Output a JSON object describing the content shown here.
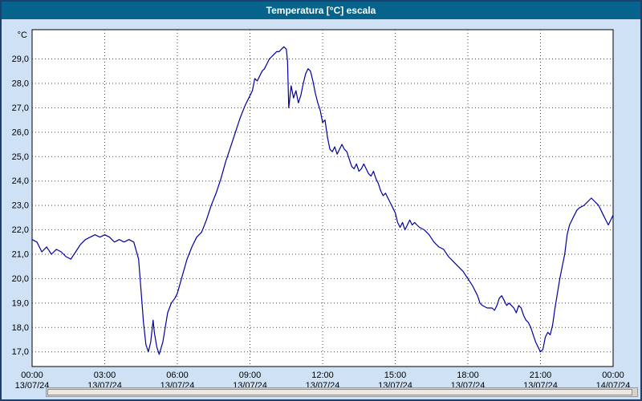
{
  "window": {
    "title": "Temperatura [°C] escala"
  },
  "colors": {
    "background": "#cfe2f5",
    "titlebar": "#06648c",
    "titlebar_text": "#ffffff",
    "plot_background": "#ffffff",
    "plot_border": "#000000",
    "grid": "#444444",
    "line": "#0000a0",
    "text": "#000000",
    "window_border": "#1c3f6e"
  },
  "chart_data": {
    "type": "line",
    "title": "Temperatura [°C] escala",
    "ylabel": "°C",
    "unit_label": "°C",
    "ylim": [
      16.4,
      30.2
    ],
    "xlim_hours": [
      0,
      24
    ],
    "grid": true,
    "yticks": [
      17,
      18,
      19,
      20,
      21,
      22,
      23,
      24,
      25,
      26,
      27,
      28,
      29
    ],
    "ytick_labels": [
      "17,0",
      "18,0",
      "19,0",
      "20,0",
      "21,0",
      "22,0",
      "23,0",
      "24,0",
      "25,0",
      "26,0",
      "27,0",
      "28,0",
      "29,0"
    ],
    "xticks_hours": [
      0,
      3,
      6,
      9,
      12,
      15,
      18,
      21,
      24
    ],
    "xtick_times": [
      "00:00",
      "03:00",
      "06:00",
      "09:00",
      "12:00",
      "15:00",
      "18:00",
      "21:00",
      "00:00"
    ],
    "xtick_dates": [
      "13/07/24",
      "13/07/24",
      "13/07/24",
      "13/07/24",
      "13/07/24",
      "13/07/24",
      "13/07/24",
      "13/07/24",
      "14/07/24"
    ],
    "series": [
      {
        "name": "Temperatura",
        "color": "#0000a0",
        "points": [
          [
            0,
            21.6
          ],
          [
            0.2,
            21.5
          ],
          [
            0.4,
            21.1
          ],
          [
            0.6,
            21.3
          ],
          [
            0.8,
            21.0
          ],
          [
            1.0,
            21.2
          ],
          [
            1.2,
            21.1
          ],
          [
            1.4,
            20.9
          ],
          [
            1.6,
            20.8
          ],
          [
            1.8,
            21.1
          ],
          [
            2.0,
            21.4
          ],
          [
            2.2,
            21.6
          ],
          [
            2.4,
            21.7
          ],
          [
            2.6,
            21.8
          ],
          [
            2.8,
            21.7
          ],
          [
            3.0,
            21.8
          ],
          [
            3.2,
            21.7
          ],
          [
            3.4,
            21.5
          ],
          [
            3.6,
            21.6
          ],
          [
            3.8,
            21.5
          ],
          [
            4.0,
            21.6
          ],
          [
            4.2,
            21.5
          ],
          [
            4.4,
            20.8
          ],
          [
            4.5,
            19.5
          ],
          [
            4.6,
            18.2
          ],
          [
            4.7,
            17.3
          ],
          [
            4.8,
            17.0
          ],
          [
            4.9,
            17.4
          ],
          [
            5.0,
            18.3
          ],
          [
            5.05,
            17.8
          ],
          [
            5.15,
            17.2
          ],
          [
            5.25,
            16.9
          ],
          [
            5.4,
            17.4
          ],
          [
            5.5,
            18.0
          ],
          [
            5.6,
            18.6
          ],
          [
            5.75,
            19.0
          ],
          [
            5.9,
            19.2
          ],
          [
            6.0,
            19.4
          ],
          [
            6.2,
            20.1
          ],
          [
            6.4,
            20.8
          ],
          [
            6.6,
            21.3
          ],
          [
            6.8,
            21.7
          ],
          [
            7.0,
            21.9
          ],
          [
            7.2,
            22.4
          ],
          [
            7.4,
            23.0
          ],
          [
            7.6,
            23.5
          ],
          [
            7.8,
            24.1
          ],
          [
            8.0,
            24.8
          ],
          [
            8.2,
            25.4
          ],
          [
            8.4,
            26.0
          ],
          [
            8.6,
            26.6
          ],
          [
            8.8,
            27.1
          ],
          [
            9.0,
            27.5
          ],
          [
            9.1,
            27.7
          ],
          [
            9.2,
            28.2
          ],
          [
            9.3,
            28.1
          ],
          [
            9.4,
            28.3
          ],
          [
            9.5,
            28.5
          ],
          [
            9.6,
            28.6
          ],
          [
            9.7,
            28.8
          ],
          [
            9.8,
            29.0
          ],
          [
            9.9,
            29.1
          ],
          [
            10.0,
            29.2
          ],
          [
            10.1,
            29.3
          ],
          [
            10.2,
            29.3
          ],
          [
            10.3,
            29.4
          ],
          [
            10.4,
            29.5
          ],
          [
            10.5,
            29.4
          ],
          [
            10.55,
            28.9
          ],
          [
            10.6,
            27.0
          ],
          [
            10.7,
            27.9
          ],
          [
            10.8,
            27.4
          ],
          [
            10.9,
            27.7
          ],
          [
            11.0,
            27.2
          ],
          [
            11.1,
            27.5
          ],
          [
            11.2,
            28.0
          ],
          [
            11.3,
            28.4
          ],
          [
            11.4,
            28.6
          ],
          [
            11.5,
            28.5
          ],
          [
            11.6,
            28.1
          ],
          [
            11.7,
            27.6
          ],
          [
            11.8,
            27.2
          ],
          [
            11.9,
            26.9
          ],
          [
            12.0,
            26.4
          ],
          [
            12.1,
            26.5
          ],
          [
            12.2,
            25.8
          ],
          [
            12.3,
            25.3
          ],
          [
            12.4,
            25.2
          ],
          [
            12.5,
            25.4
          ],
          [
            12.6,
            25.1
          ],
          [
            12.7,
            25.3
          ],
          [
            12.8,
            25.5
          ],
          [
            12.9,
            25.3
          ],
          [
            13.0,
            25.2
          ],
          [
            13.1,
            24.9
          ],
          [
            13.2,
            24.6
          ],
          [
            13.3,
            24.5
          ],
          [
            13.4,
            24.7
          ],
          [
            13.5,
            24.4
          ],
          [
            13.6,
            24.5
          ],
          [
            13.7,
            24.7
          ],
          [
            13.8,
            24.5
          ],
          [
            13.9,
            24.3
          ],
          [
            14.0,
            24.2
          ],
          [
            14.1,
            24.4
          ],
          [
            14.2,
            24.1
          ],
          [
            14.3,
            23.9
          ],
          [
            14.4,
            23.6
          ],
          [
            14.5,
            23.4
          ],
          [
            14.6,
            23.5
          ],
          [
            14.7,
            23.3
          ],
          [
            14.8,
            23.1
          ],
          [
            14.9,
            22.9
          ],
          [
            15.0,
            22.7
          ],
          [
            15.1,
            22.3
          ],
          [
            15.2,
            22.1
          ],
          [
            15.3,
            22.3
          ],
          [
            15.4,
            22.0
          ],
          [
            15.5,
            22.2
          ],
          [
            15.6,
            22.4
          ],
          [
            15.7,
            22.2
          ],
          [
            15.8,
            22.3
          ],
          [
            15.9,
            22.2
          ],
          [
            16.0,
            22.1
          ],
          [
            16.2,
            22.0
          ],
          [
            16.4,
            21.8
          ],
          [
            16.6,
            21.5
          ],
          [
            16.8,
            21.3
          ],
          [
            17.0,
            21.2
          ],
          [
            17.2,
            20.9
          ],
          [
            17.4,
            20.7
          ],
          [
            17.6,
            20.5
          ],
          [
            17.8,
            20.3
          ],
          [
            18.0,
            20.0
          ],
          [
            18.2,
            19.7
          ],
          [
            18.4,
            19.3
          ],
          [
            18.5,
            19.0
          ],
          [
            18.6,
            18.9
          ],
          [
            18.8,
            18.8
          ],
          [
            19.0,
            18.8
          ],
          [
            19.1,
            18.7
          ],
          [
            19.2,
            18.9
          ],
          [
            19.3,
            19.2
          ],
          [
            19.4,
            19.3
          ],
          [
            19.5,
            19.1
          ],
          [
            19.6,
            18.9
          ],
          [
            19.7,
            19.0
          ],
          [
            19.8,
            18.9
          ],
          [
            19.9,
            18.8
          ],
          [
            20.0,
            18.6
          ],
          [
            20.1,
            18.9
          ],
          [
            20.2,
            18.8
          ],
          [
            20.3,
            18.5
          ],
          [
            20.4,
            18.3
          ],
          [
            20.5,
            18.2
          ],
          [
            20.6,
            18.0
          ],
          [
            20.7,
            17.7
          ],
          [
            20.8,
            17.4
          ],
          [
            20.9,
            17.2
          ],
          [
            21.0,
            17.0
          ],
          [
            21.1,
            17.1
          ],
          [
            21.2,
            17.6
          ],
          [
            21.3,
            17.8
          ],
          [
            21.4,
            17.7
          ],
          [
            21.5,
            18.1
          ],
          [
            21.6,
            18.8
          ],
          [
            21.7,
            19.4
          ],
          [
            21.8,
            20.0
          ],
          [
            21.9,
            20.5
          ],
          [
            22.0,
            21.0
          ],
          [
            22.1,
            21.8
          ],
          [
            22.2,
            22.2
          ],
          [
            22.3,
            22.4
          ],
          [
            22.4,
            22.6
          ],
          [
            22.5,
            22.8
          ],
          [
            22.6,
            22.9
          ],
          [
            22.8,
            23.0
          ],
          [
            23.0,
            23.2
          ],
          [
            23.1,
            23.3
          ],
          [
            23.2,
            23.2
          ],
          [
            23.3,
            23.1
          ],
          [
            23.4,
            23.0
          ],
          [
            23.5,
            22.8
          ],
          [
            23.6,
            22.6
          ],
          [
            23.7,
            22.4
          ],
          [
            23.8,
            22.2
          ],
          [
            23.9,
            22.4
          ],
          [
            24.0,
            22.6
          ]
        ]
      }
    ]
  }
}
